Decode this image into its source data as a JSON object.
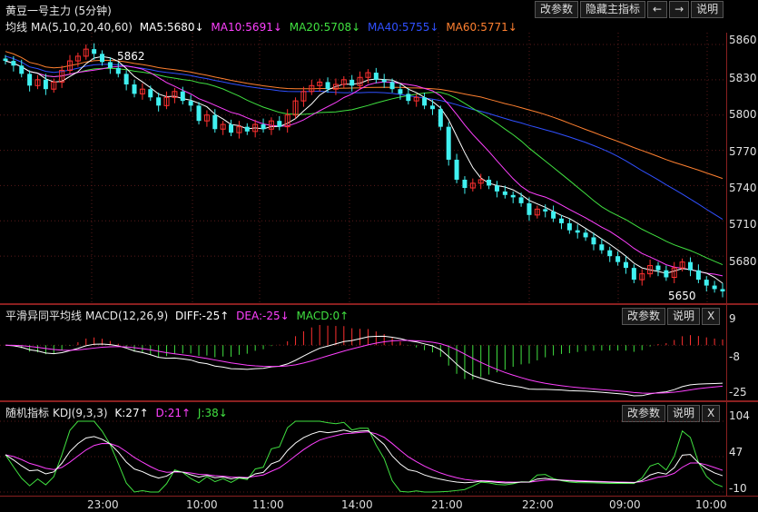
{
  "title": "黄豆一号主力 (5分钟)",
  "toolbar": {
    "change_params": "改参数",
    "hide_main_indicator": "隐藏主指标",
    "left_arrow": "←",
    "right_arrow": "→",
    "help": "说明"
  },
  "ma_legend": {
    "name": "均线",
    "params": "MA(5,10,20,40,60)",
    "ma5": "MA5:5680↓",
    "ma10": "MA10:5691↓",
    "ma20": "MA20:5708↓",
    "ma40": "MA40:5755↓",
    "ma60": "MA60:5771↓"
  },
  "macd_panel": {
    "name": "平滑异同平均线",
    "params": "MACD(12,26,9)",
    "diff": "DIFF:-25↑",
    "dea": "DEA:-25↓",
    "macd": "MACD:0↑",
    "change_params": "改参数",
    "help": "说明",
    "close": "X"
  },
  "kdj_panel": {
    "name": "随机指标",
    "params": "KDJ(9,3,3)",
    "k": "K:27↑",
    "d": "D:21↑",
    "j": "J:38↓",
    "change_params": "改参数",
    "help": "说明",
    "close": "X"
  },
  "price_axis": [
    "5860",
    "5830",
    "5800",
    "5770",
    "5740",
    "5710",
    "5680",
    "5650"
  ],
  "macd_axis": [
    "9",
    "-8",
    "-25"
  ],
  "kdj_axis": [
    "104",
    "47",
    "-10"
  ],
  "annotations": {
    "high": "5862",
    "low": "5650"
  },
  "time_axis": [
    "23:00",
    "10:00",
    "11:00",
    "14:00",
    "21:00",
    "22:00",
    "09:00",
    "10:00"
  ],
  "colors": {
    "ma5": "#ffffff",
    "ma10": "#ff40ff",
    "ma20": "#40e040",
    "ma40": "#3050ff",
    "ma60": "#ff8030",
    "up": "#ff3030",
    "down": "#40f0f0",
    "grid": "#5a1a1a"
  },
  "chart_data": {
    "type": "candlestick",
    "price_range": [
      5640,
      5870
    ],
    "candles_approx_close": [
      5846,
      5842,
      5835,
      5825,
      5830,
      5822,
      5828,
      5838,
      5846,
      5850,
      5856,
      5852,
      5845,
      5840,
      5835,
      5826,
      5818,
      5822,
      5815,
      5808,
      5815,
      5820,
      5812,
      5808,
      5795,
      5800,
      5788,
      5792,
      5785,
      5790,
      5786,
      5792,
      5788,
      5795,
      5790,
      5800,
      5812,
      5820,
      5825,
      5828,
      5822,
      5826,
      5830,
      5825,
      5832,
      5836,
      5830,
      5828,
      5822,
      5818,
      5812,
      5815,
      5808,
      5805,
      5790,
      5762,
      5745,
      5738,
      5742,
      5745,
      5740,
      5735,
      5732,
      5730,
      5725,
      5715,
      5720,
      5718,
      5712,
      5708,
      5702,
      5700,
      5696,
      5690,
      5685,
      5680,
      5675,
      5670,
      5660,
      5665,
      5672,
      5668,
      5662,
      5670,
      5675,
      5668,
      5660,
      5655,
      5652,
      5650
    ]
  }
}
